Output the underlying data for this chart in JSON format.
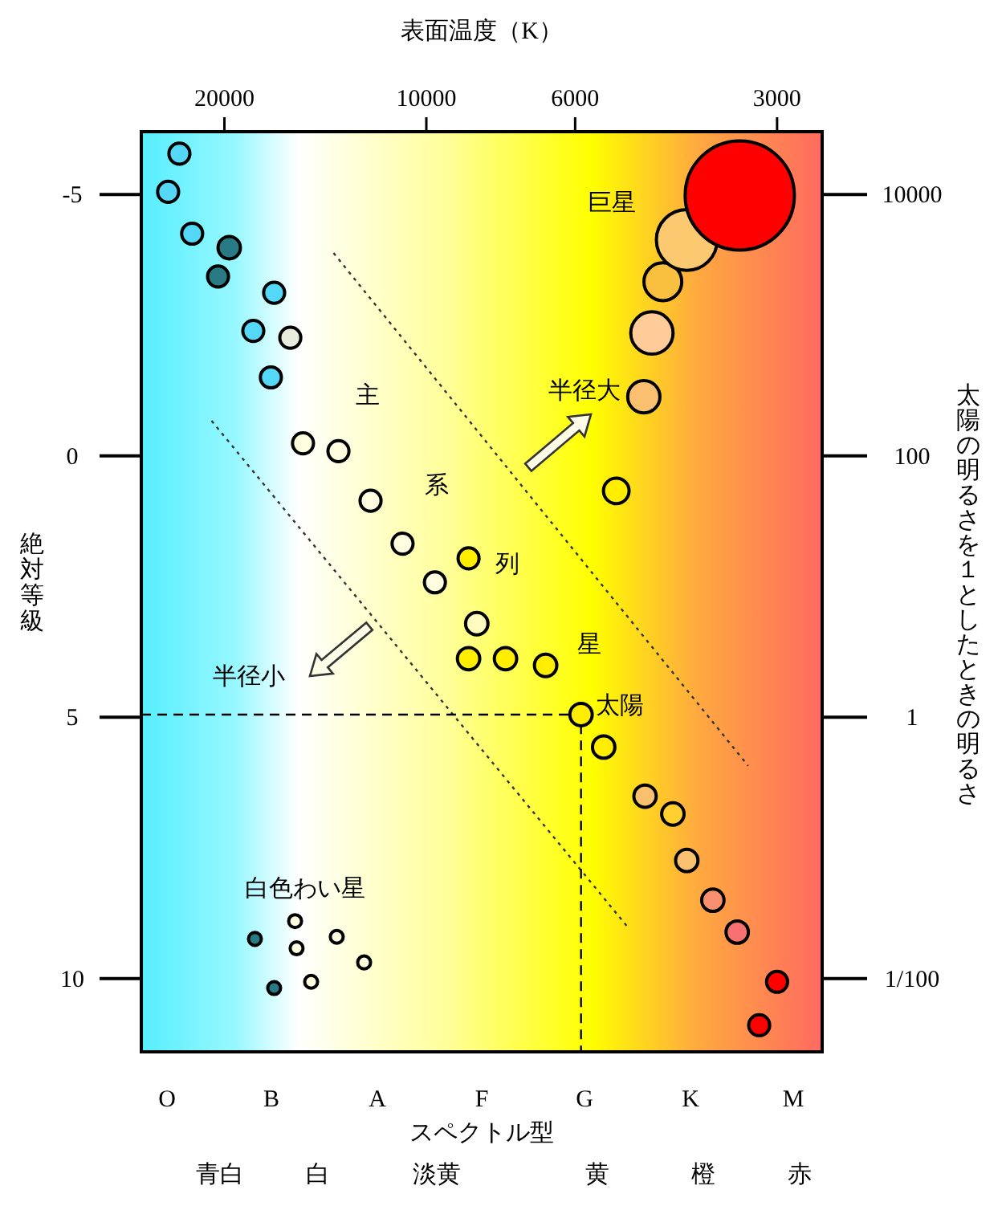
{
  "chart_data": {
    "type": "bubble",
    "xlabel": "表面温度（K）",
    "ylabel": "太陽の明るさを１としたときの明るさ",
    "y2label": "絶対等級",
    "xlim": [
      26600,
      2570
    ],
    "xticks": [
      20000,
      10000,
      6000,
      3000
    ],
    "ylim": [
      0.00275,
      30200
    ],
    "yticks": [
      10000,
      100,
      1,
      {
        "value": 0.01,
        "label": "1/100"
      }
    ],
    "y2lim": [
      11.4,
      -6.2
    ],
    "y2ticks": [
      -5,
      0,
      5,
      10
    ],
    "log": "xy",
    "grid": false,
    "series": [
      {
        "axis": "y2",
        "x": [
          23340,
          24260,
          22340,
          19670,
          20440,
          16860,
          18110,
          17050,
          15950,
          15270,
          13520,
          12110,
          10850,
          9710,
          8650,
          8410,
          8650,
          7620,
          6640,
          5880,
          5440,
          4720,
          4290,
          4090,
          3740,
          3440,
          3000,
          3190,
          5210,
          4740,
          4610,
          4440,
          4090,
          3410,
          18010,
          16860,
          15690,
          15610,
          14850,
          13600,
          12380
        ],
        "values": [
          -5.78,
          -5.05,
          -4.25,
          -3.98,
          -3.43,
          -3.12,
          -2.39,
          -1.5,
          -2.26,
          -0.24,
          -0.09,
          0.86,
          1.68,
          2.42,
          1.96,
          3.21,
          3.88,
          3.88,
          4.01,
          4.95,
          5.57,
          6.51,
          6.85,
          7.74,
          8.5,
          9.11,
          10.06,
          10.89,
          0.67,
          -1.13,
          -2.35,
          -3.33,
          -4.13,
          -4.98,
          9.24,
          10.18,
          8.9,
          9.42,
          10.06,
          9.2,
          9.69
        ],
        "sizes": [
          0.037,
          0.037,
          0.037,
          0.042,
          0.037,
          0.037,
          0.037,
          0.037,
          0.037,
          0.037,
          0.037,
          0.037,
          0.037,
          0.037,
          0.037,
          0.042,
          0.042,
          0.042,
          0.042,
          0.042,
          0.042,
          0.042,
          0.042,
          0.042,
          0.042,
          0.042,
          0.037,
          0.037,
          0.055,
          0.087,
          0.15,
          0.12,
          0.31,
          1,
          0.014,
          0.014,
          0.014,
          0.014,
          0.014,
          0.014,
          0.014
        ],
        "colors": [
          "#55d8f8",
          "#55d8f8",
          "#55d8f8",
          "#2a7a85",
          "#2a7a85",
          "#55d8f8",
          "#55d8f8",
          "#55d8f8",
          "#e8ecdc",
          "#fffde0",
          "#fffde0",
          "#fffde0",
          "#fffde0",
          "#fffde0",
          "#ffee00",
          "#fffac0",
          "#ffee00",
          "#ffee00",
          "#ffee00",
          "#ffee00",
          "#ffee00",
          "#f9c070",
          "#ffd030",
          "#f9c070",
          "#f89070",
          "#f87070",
          "#ff0000",
          "#ff0000",
          "#ffee00",
          "#fac070",
          "#ffcc99",
          "#f9c040",
          "#fcc870",
          "#ff0000",
          "#2a7a85",
          "#2a7a85",
          "#fffde0",
          "#fffde0",
          "#fffde0",
          "#fffde0",
          "#fffde0"
        ]
      },
      {
        "type": "line",
        "axis": "y2",
        "line_style": "dotted",
        "color": "#333333",
        "x": [
          13750,
          3313
        ],
        "values": [
          -3.88,
          5.93
        ]
      },
      {
        "type": "line",
        "axis": "y2",
        "line_style": "dotted",
        "color": "#333333",
        "x": [
          20900,
          4983
        ],
        "values": [
          -0.67,
          9.05
        ]
      },
      {
        "type": "line",
        "axis": "y2",
        "line_style": "dashed",
        "color": "#000000",
        "x": [
          26600,
          5880,
          5880
        ],
        "values": [
          4.95,
          4.95,
          11.4
        ]
      }
    ],
    "annotations": [
      "巨星",
      "主",
      "系",
      "列",
      "星",
      "太陽",
      "半径大",
      "半径小",
      "白色わい星",
      "O",
      "B",
      "A",
      "F",
      "G",
      "K",
      "M",
      "スペクトル型",
      "青白",
      "白",
      "淡黄",
      "黄",
      "橙",
      "赤"
    ]
  }
}
